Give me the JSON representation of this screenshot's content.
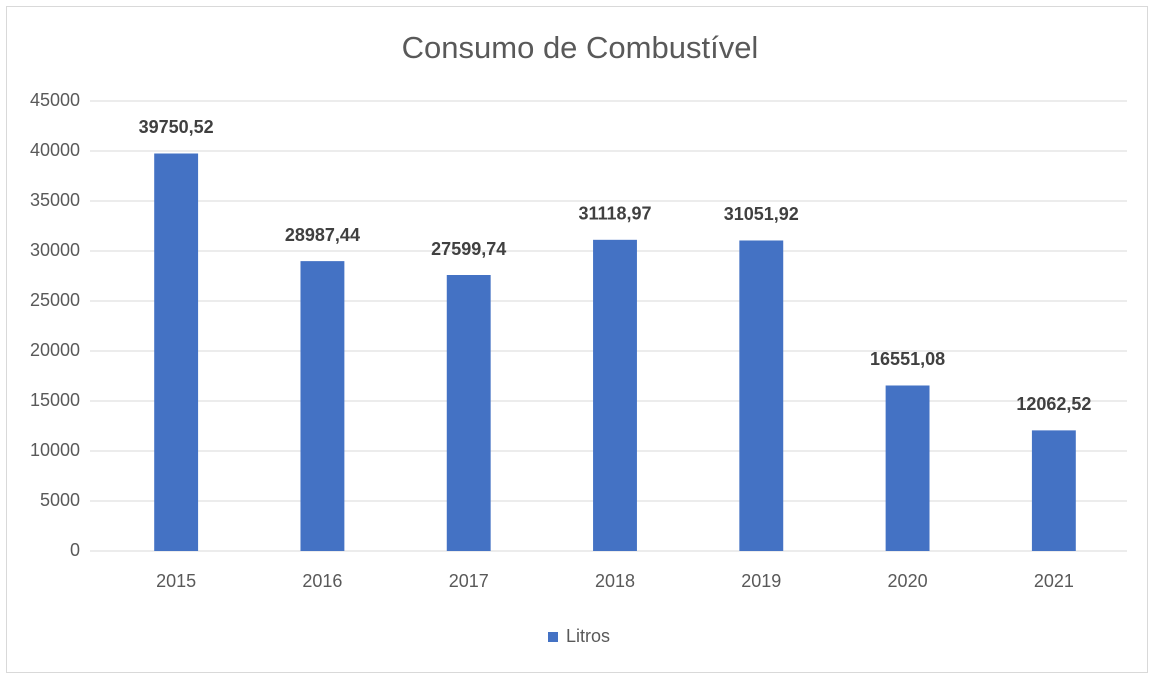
{
  "chart_data": {
    "type": "bar",
    "title": "Consumo de Combustível",
    "categories": [
      "2015",
      "2016",
      "2017",
      "2018",
      "2019",
      "2020",
      "2021"
    ],
    "series": [
      {
        "name": "Litros",
        "color": "#4472c4",
        "values": [
          39750.52,
          28987.44,
          27599.74,
          31118.97,
          31051.92,
          16551.08,
          12062.52
        ],
        "value_labels": [
          "39750,52",
          "28987,44",
          "27599,74",
          "31118,97",
          "31051,92",
          "16551,08",
          "12062,52"
        ]
      }
    ],
    "ylim": [
      0,
      45000
    ],
    "yticks": [
      0,
      5000,
      10000,
      15000,
      20000,
      25000,
      30000,
      35000,
      40000,
      45000
    ],
    "grid": true,
    "legend": "bottom"
  }
}
